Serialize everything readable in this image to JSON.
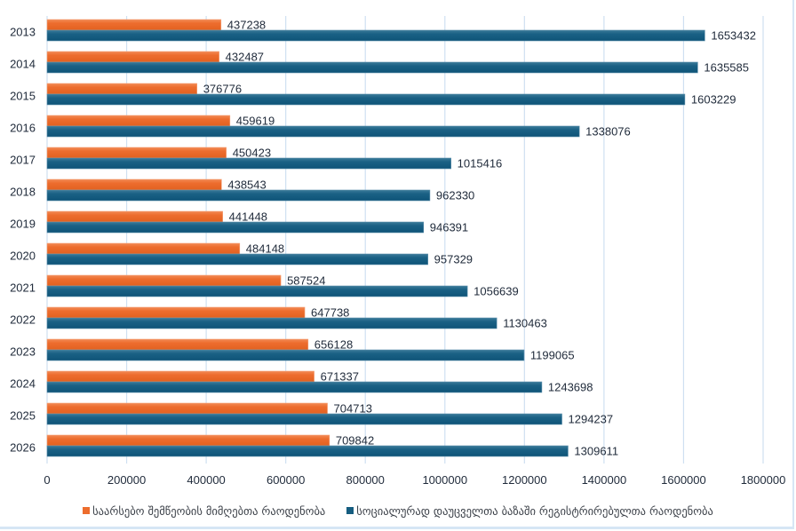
{
  "chart_data": {
    "type": "bar",
    "orientation": "horizontal",
    "title": "",
    "xlabel": "",
    "ylabel": "",
    "categories": [
      "2013",
      "2014",
      "2015",
      "2016",
      "2017",
      "2018",
      "2019",
      "2020",
      "2021",
      "2022",
      "2023",
      "2024",
      "2025",
      "2026"
    ],
    "series": [
      {
        "name": "საარსებო შემწეობის მიმღებთა რაოდენობა",
        "color": "#ed6d2e",
        "values": [
          437238,
          432487,
          376776,
          459619,
          450423,
          438543,
          441448,
          484148,
          587524,
          647738,
          656128,
          671337,
          704713,
          709842
        ]
      },
      {
        "name": "სოციალურად დაუცველთა ბაზაში რეგისტრირებულთა რაოდენობა",
        "color": "#165d80",
        "values": [
          1653432,
          1635585,
          1603229,
          1338076,
          1015416,
          962330,
          946391,
          957329,
          1056639,
          1130463,
          1199065,
          1243698,
          1294237,
          1309611
        ]
      }
    ],
    "xlim": [
      0,
      1800000
    ],
    "x_ticks": [
      "0",
      "200000",
      "400000",
      "600000",
      "800000",
      "1000000",
      "1200000",
      "1400000",
      "1600000",
      "1800000"
    ],
    "x_tick_values": [
      0,
      200000,
      400000,
      600000,
      800000,
      1000000,
      1200000,
      1400000,
      1600000,
      1800000
    ],
    "grid": "vertical",
    "data_labels": true,
    "legend_position": "bottom"
  },
  "colors": {
    "gridline": "#cfe0f1",
    "text": "#1f2a3a",
    "frame": "#d6e6f5"
  }
}
